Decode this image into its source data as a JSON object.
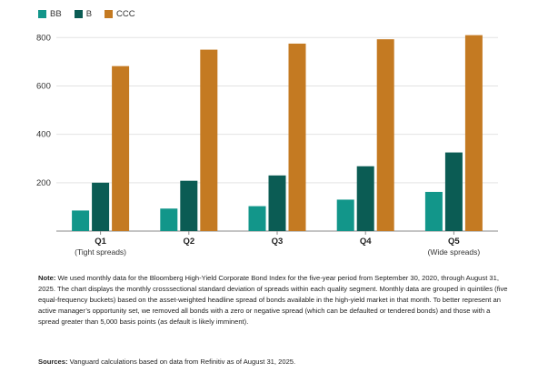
{
  "chart_data": {
    "type": "bar",
    "categories": [
      "Q1",
      "Q2",
      "Q3",
      "Q4",
      "Q5"
    ],
    "category_sublabels": [
      "(Tight spreads)",
      "",
      "",
      "",
      "(Wide spreads)"
    ],
    "series": [
      {
        "name": "BB",
        "color": "#12968a",
        "values": [
          85,
          93,
          103,
          130,
          162
        ]
      },
      {
        "name": "B",
        "color": "#0b5c54",
        "values": [
          200,
          208,
          230,
          268,
          325
        ]
      },
      {
        "name": "CCC",
        "color": "#c47a22",
        "values": [
          682,
          750,
          775,
          793,
          810
        ]
      }
    ],
    "yticks": [
      200,
      400,
      600,
      800
    ],
    "ylim": [
      0,
      850
    ],
    "grid": true,
    "legend_position": "top-left"
  },
  "note": {
    "label": "Note:",
    "text": "We used monthly data for the Bloomberg High-Yield Corporate Bond Index for the five-year period from September 30, 2020, through August 31, 2025. The chart displays the monthly crosssectional standard deviation of spreads within each quality segment. Monthly data are grouped in quintiles (five equal-frequency buckets) based on the asset-weighted headline spread of bonds available in the high-yield market in that month. To better represent an active manager’s opportunity set, we removed all bonds with a zero or negative spread (which can be defaulted or tendered bonds) and those with a spread greater than 5,000 basis points (as default is likely imminent)."
  },
  "sources": {
    "label": "Sources:",
    "text": "Vanguard calculations based on data from Refinitiv as of August 31, 2025."
  }
}
